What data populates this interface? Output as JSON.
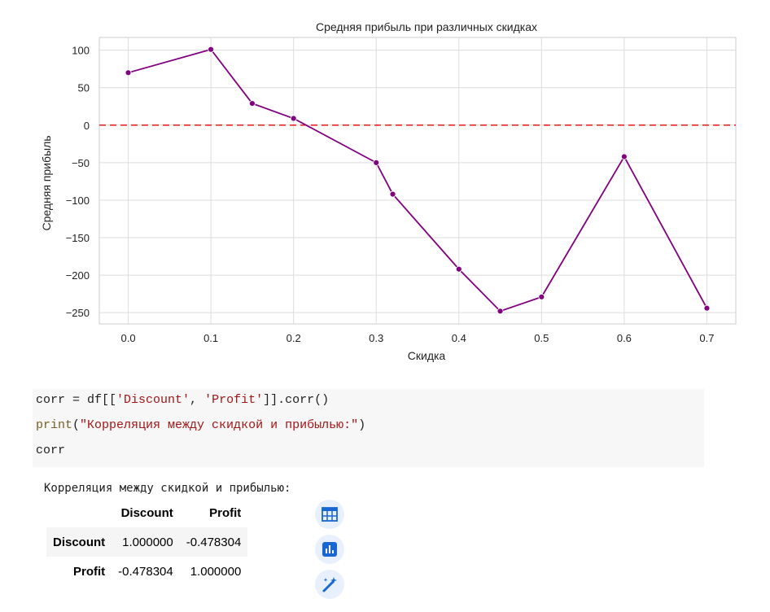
{
  "chart_data": {
    "type": "line",
    "title": "Средняя прибыль при различных скидках",
    "xlabel": "Скидка",
    "ylabel": "Средняя прибыль",
    "x": [
      0.0,
      0.1,
      0.15,
      0.2,
      0.3,
      0.32,
      0.4,
      0.45,
      0.5,
      0.6,
      0.7
    ],
    "y": [
      70,
      101,
      29,
      9,
      -50,
      -92,
      -192,
      -248,
      -229,
      -42,
      -244
    ],
    "xlim": [
      -0.035,
      0.735
    ],
    "ylim": [
      -265,
      117
    ],
    "xticks": [
      0.0,
      0.1,
      0.2,
      0.3,
      0.4,
      0.5,
      0.6,
      0.7
    ],
    "xtick_labels": [
      "0.0",
      "0.1",
      "0.2",
      "0.3",
      "0.4",
      "0.5",
      "0.6",
      "0.7"
    ],
    "yticks": [
      100,
      50,
      0,
      -50,
      -100,
      -150,
      -200,
      -250
    ],
    "ytick_labels": [
      "100",
      "50",
      "0",
      "−50",
      "−100",
      "−150",
      "−200",
      "−250"
    ],
    "reference_line": {
      "y": 0,
      "color": "#e41a1c",
      "style": "dashed"
    },
    "line_color": "#800080",
    "grid": true
  },
  "code": {
    "line1": {
      "a": "corr = df[[",
      "s1": "'Discount'",
      "b": ", ",
      "s2": "'Profit'",
      "c": "]].corr()"
    },
    "line2": {
      "fn": "print",
      "a": "(",
      "s": "\"Корреляция между скидкой и прибылью:\"",
      "b": ")"
    },
    "line3": "corr"
  },
  "output": {
    "printed": "Корреляция между скидкой и прибылью:",
    "table": {
      "columns": [
        "Discount",
        "Profit"
      ],
      "rows": [
        {
          "index": "Discount",
          "values": [
            "1.000000",
            "-0.478304"
          ]
        },
        {
          "index": "Profit",
          "values": [
            "-0.478304",
            "1.000000"
          ]
        }
      ]
    },
    "buttons": [
      {
        "icon": "table-icon"
      },
      {
        "icon": "bar-chart-icon"
      },
      {
        "icon": "magic-wand-icon"
      }
    ]
  }
}
